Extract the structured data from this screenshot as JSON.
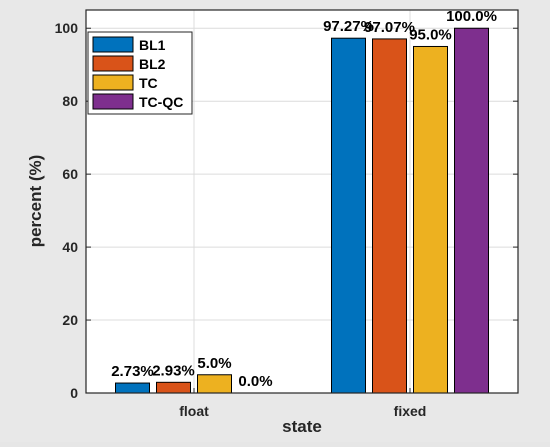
{
  "chart_data": {
    "type": "bar",
    "categories": [
      "float",
      "fixed"
    ],
    "series": [
      {
        "name": "BL1",
        "color": "#0072BD",
        "values": [
          2.73,
          97.27
        ],
        "labels": [
          "2.73%",
          "97.27%"
        ]
      },
      {
        "name": "BL2",
        "color": "#D95319",
        "values": [
          2.93,
          97.07
        ],
        "labels": [
          "2.93%",
          "97.07%"
        ]
      },
      {
        "name": "TC",
        "color": "#EDB120",
        "values": [
          5.0,
          95.0
        ],
        "labels": [
          "5.0%",
          "95.0%"
        ]
      },
      {
        "name": "TC-QC",
        "color": "#7E2F8E",
        "values": [
          0.0,
          100.0
        ],
        "labels": [
          "0.0%",
          "100.0%"
        ]
      }
    ],
    "xlabel": "state",
    "ylabel": "percent (%)",
    "ylim": [
      0,
      105
    ],
    "yticks": [
      0,
      20,
      40,
      60,
      80,
      100
    ],
    "grid": true,
    "legend_position": "top-left"
  }
}
